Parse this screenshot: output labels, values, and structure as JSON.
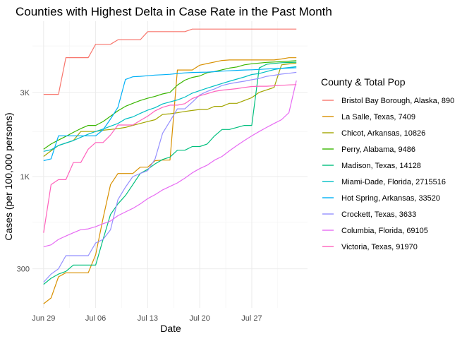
{
  "chart_data": {
    "type": "line",
    "title": "Counties with Highest Delta in Case Rate in the Past Month",
    "xlabel": "Date",
    "ylabel": "Cases (per 100,000 persons)",
    "y_scale": "log",
    "ylim": [
      180,
      7600
    ],
    "xlim": [
      -1.5,
      35.5
    ],
    "x_ticks": [
      {
        "day": 0,
        "label": "Jun 29"
      },
      {
        "day": 7,
        "label": "Jul 06"
      },
      {
        "day": 14,
        "label": "Jul 13"
      },
      {
        "day": 21,
        "label": "Jul 20"
      },
      {
        "day": 28,
        "label": "Jul 27"
      }
    ],
    "y_ticks": [
      {
        "value": 300,
        "label": "300"
      },
      {
        "value": 1000,
        "label": "1K"
      },
      {
        "value": 3000,
        "label": "3K"
      }
    ],
    "grid": true,
    "legend": {
      "title": "County & Total Pop",
      "placement": "right"
    },
    "series": [
      {
        "name": "Bristol Bay Borough, Alaska, 890",
        "color": "#F8766D",
        "x": [
          0,
          1,
          2,
          3,
          4,
          5,
          6,
          7,
          8,
          9,
          10,
          11,
          12,
          13,
          14,
          15,
          16,
          17,
          18,
          19,
          20,
          21,
          22,
          23,
          24,
          25,
          26,
          27,
          28,
          29,
          30,
          31,
          32,
          33,
          34
        ],
        "y": [
          2923,
          2923,
          2923,
          4723,
          4723,
          4723,
          4723,
          5620,
          5620,
          5620,
          5960,
          5960,
          5960,
          5960,
          6630,
          6630,
          6630,
          6630,
          6630,
          6630,
          6856,
          6856,
          6856,
          6856,
          6856,
          6856,
          6856,
          6856,
          6856,
          6856,
          6856,
          6856,
          6856,
          6856,
          6856
        ]
      },
      {
        "name": "La Salle, Texas, 7409",
        "color": "#D89000",
        "x": [
          0,
          1,
          2,
          3,
          4,
          5,
          6,
          7,
          8,
          9,
          10,
          11,
          12,
          13,
          14,
          15,
          16,
          17,
          18,
          19,
          20,
          21,
          22,
          23,
          24,
          25,
          26,
          27,
          28,
          29,
          30,
          31,
          32,
          33,
          34
        ],
        "y": [
          190,
          205,
          270,
          285,
          285,
          285,
          285,
          360,
          580,
          900,
          1040,
          1040,
          1040,
          1130,
          1130,
          1230,
          1240,
          1240,
          4020,
          4020,
          4020,
          4280,
          4370,
          4460,
          4550,
          4580,
          4580,
          4580,
          4580,
          4580,
          4580,
          4580,
          4640,
          4720,
          4720
        ]
      },
      {
        "name": "Chicot, Arkansas, 10826",
        "color": "#A3A500",
        "x": [
          0,
          1,
          2,
          3,
          4,
          5,
          6,
          7,
          8,
          9,
          10,
          11,
          12,
          13,
          14,
          15,
          16,
          17,
          18,
          19,
          20,
          21,
          22,
          23,
          24,
          25,
          26,
          27,
          28,
          29,
          30,
          31,
          32,
          33,
          34
        ],
        "y": [
          1300,
          1400,
          1500,
          1550,
          1600,
          1800,
          1800,
          1800,
          1830,
          1850,
          1870,
          1900,
          1950,
          2000,
          2050,
          2100,
          2250,
          2270,
          2300,
          2340,
          2370,
          2400,
          2400,
          2500,
          2500,
          2600,
          2600,
          2700,
          2800,
          3000,
          3100,
          3200,
          4300,
          4350,
          4400
        ]
      },
      {
        "name": "Perry, Alabama, 9486",
        "color": "#39B600",
        "x": [
          0,
          1,
          2,
          3,
          4,
          5,
          6,
          7,
          8,
          9,
          10,
          11,
          12,
          13,
          14,
          15,
          16,
          17,
          18,
          19,
          20,
          21,
          22,
          23,
          24,
          25,
          26,
          27,
          28,
          29,
          30,
          31,
          32,
          33,
          34
        ],
        "y": [
          1430,
          1530,
          1610,
          1690,
          1780,
          1870,
          1950,
          1950,
          2050,
          2200,
          2360,
          2500,
          2600,
          2700,
          2780,
          2850,
          2940,
          3000,
          3300,
          3520,
          3650,
          3720,
          3880,
          3940,
          4030,
          4120,
          4180,
          4300,
          4360,
          4400,
          4440,
          4460,
          4480,
          4510,
          4540
        ]
      },
      {
        "name": "Madison, Texas, 14128",
        "color": "#00BF7D",
        "x": [
          0,
          1,
          2,
          3,
          4,
          5,
          6,
          7,
          8,
          9,
          10,
          11,
          12,
          13,
          14,
          15,
          16,
          17,
          18,
          19,
          20,
          21,
          22,
          23,
          24,
          25,
          26,
          27,
          28,
          29,
          30,
          31,
          32,
          33,
          34
        ],
        "y": [
          245,
          265,
          280,
          290,
          315,
          315,
          315,
          315,
          440,
          610,
          700,
          780,
          900,
          1040,
          1100,
          1180,
          1250,
          1290,
          1410,
          1410,
          1480,
          1480,
          1530,
          1700,
          1850,
          1850,
          1900,
          1950,
          1950,
          4130,
          4330,
          4380,
          4420,
          4430,
          4450
        ]
      },
      {
        "name": "Miami-Dade, Florida, 2715516",
        "color": "#00BFC4",
        "x": [
          0,
          1,
          2,
          3,
          4,
          5,
          6,
          7,
          8,
          9,
          10,
          11,
          12,
          13,
          14,
          15,
          16,
          17,
          18,
          19,
          20,
          21,
          22,
          23,
          24,
          25,
          26,
          27,
          28,
          29,
          30,
          31,
          32,
          33,
          34
        ],
        "y": [
          1390,
          1420,
          1500,
          1550,
          1600,
          1670,
          1740,
          1800,
          1860,
          1930,
          2000,
          2120,
          2180,
          2280,
          2380,
          2460,
          2580,
          2650,
          2720,
          2820,
          2970,
          3070,
          3170,
          3270,
          3370,
          3470,
          3570,
          3670,
          3790,
          3840,
          3940,
          4040,
          4110,
          4150,
          4200
        ]
      },
      {
        "name": "Hot Spring, Arkansas, 33520",
        "color": "#00B0F6",
        "x": [
          0,
          1,
          2,
          3,
          4,
          5,
          6,
          7,
          8,
          9,
          10,
          11,
          12,
          13,
          14,
          15,
          16,
          17,
          18,
          19,
          20,
          21,
          22,
          23,
          24,
          25,
          26,
          27,
          28,
          29,
          30,
          31,
          32,
          33,
          34
        ],
        "y": [
          1230,
          1260,
          1700,
          1700,
          1700,
          1700,
          1700,
          1700,
          1840,
          2120,
          2470,
          3550,
          3680,
          3700,
          3730,
          3760,
          3780,
          3800,
          3840,
          3870,
          3890,
          3900,
          3910,
          3930,
          3960,
          3980,
          4000,
          4020,
          4030,
          4050,
          4070,
          4090,
          4100,
          4120,
          4140
        ]
      },
      {
        "name": "Crockett, Texas, 3633",
        "color": "#9590FF",
        "x": [
          0,
          1,
          2,
          3,
          4,
          5,
          6,
          7,
          8,
          9,
          10,
          11,
          12,
          13,
          14,
          15,
          16,
          17,
          18,
          19,
          20,
          21,
          22,
          23,
          24,
          25,
          26,
          27,
          28,
          29,
          30,
          31,
          32,
          33,
          34
        ],
        "y": [
          252,
          280,
          300,
          356,
          356,
          356,
          356,
          420,
          440,
          500,
          740,
          870,
          1000,
          1040,
          1080,
          1260,
          1760,
          2060,
          2420,
          2420,
          2640,
          2900,
          3040,
          3140,
          3280,
          3360,
          3420,
          3470,
          3540,
          3600,
          3700,
          3750,
          3810,
          3850,
          3900
        ]
      },
      {
        "name": "Columbia, Florida, 69105",
        "color": "#E76BF3",
        "x": [
          0,
          1,
          2,
          3,
          4,
          5,
          6,
          7,
          8,
          9,
          10,
          11,
          12,
          13,
          14,
          15,
          16,
          17,
          18,
          19,
          20,
          21,
          22,
          23,
          24,
          25,
          26,
          27,
          28,
          29,
          30,
          31,
          32,
          33,
          34
        ],
        "y": [
          400,
          410,
          440,
          460,
          480,
          500,
          505,
          520,
          540,
          560,
          600,
          630,
          660,
          700,
          750,
          790,
          840,
          880,
          920,
          980,
          1050,
          1110,
          1160,
          1240,
          1300,
          1400,
          1500,
          1600,
          1700,
          1800,
          1900,
          2000,
          2100,
          2300,
          3500
        ]
      },
      {
        "name": "Victoria, Texas, 91970",
        "color": "#FF62BC",
        "x": [
          0,
          1,
          2,
          3,
          4,
          5,
          6,
          7,
          8,
          9,
          10,
          11,
          12,
          13,
          14,
          15,
          16,
          17,
          18,
          19,
          20,
          21,
          22,
          23,
          24,
          25,
          26,
          27,
          28,
          29,
          30,
          31,
          32,
          33,
          34
        ],
        "y": [
          480,
          900,
          960,
          960,
          1200,
          1200,
          1430,
          1560,
          1560,
          1720,
          1960,
          1960,
          1960,
          2080,
          2200,
          2360,
          2470,
          2540,
          2540,
          2590,
          2770,
          2870,
          2950,
          3040,
          3090,
          3120,
          3150,
          3200,
          3240,
          3250,
          3250,
          3270,
          3290,
          3310,
          3320
        ]
      }
    ]
  }
}
